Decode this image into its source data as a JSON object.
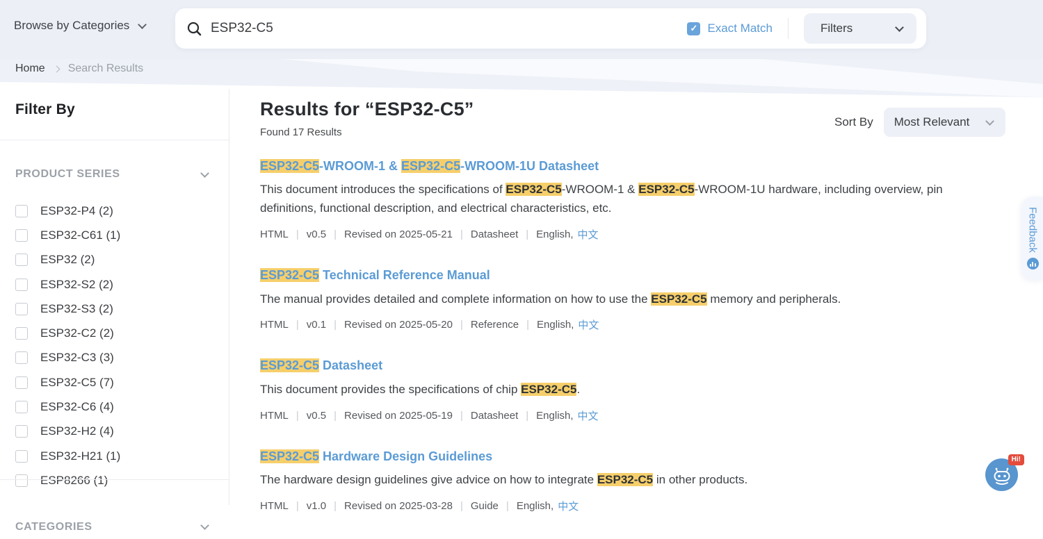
{
  "header": {
    "browse_label": "Browse by Categories",
    "search_value": "ESP32-C5",
    "exact_match_label": "Exact Match",
    "exact_match_checked": true,
    "filters_label": "Filters"
  },
  "breadcrumb": {
    "home": "Home",
    "current": "Search Results"
  },
  "sidebar": {
    "title": "Filter By",
    "product_series": {
      "label": "PRODUCT SERIES",
      "items": [
        "ESP32-P4 (2)",
        "ESP32-C61 (1)",
        "ESP32 (2)",
        "ESP32-S2 (2)",
        "ESP32-S3 (2)",
        "ESP32-C2 (2)",
        "ESP32-C3 (3)",
        "ESP32-C5 (7)",
        "ESP32-C6 (4)",
        "ESP32-H2 (4)",
        "ESP32-H21 (1)",
        "ESP8266 (1)"
      ]
    },
    "categories": {
      "label": "CATEGORIES"
    }
  },
  "results": {
    "title": "Results for “ESP32-C5”",
    "found_text": "Found 17 Results",
    "sort_by_label": "Sort By",
    "sort_value": "Most Relevant",
    "items": [
      {
        "title_parts": [
          {
            "t": "ESP32-C5",
            "hl": true
          },
          {
            "t": "-WROOM-1 & "
          },
          {
            "t": "ESP32-C5",
            "hl": true
          },
          {
            "t": "-WROOM-1U Datasheet"
          }
        ],
        "desc_parts": [
          {
            "t": "This document introduces the specifications of "
          },
          {
            "t": "ESP32-C5",
            "hl": true
          },
          {
            "t": "-WROOM-1 & "
          },
          {
            "t": "ESP32-C5",
            "hl": true
          },
          {
            "t": "-WROOM-1U hardware, including overview, pin definitions, functional description, and electrical characteristics, etc."
          }
        ],
        "meta": [
          "HTML",
          "v0.5",
          "Revised on  2025-05-21",
          "Datasheet"
        ],
        "lang_prefix": "English,",
        "lang_link": "中文"
      },
      {
        "title_parts": [
          {
            "t": "ESP32-C5",
            "hl": true
          },
          {
            "t": " Technical Reference Manual"
          }
        ],
        "desc_parts": [
          {
            "t": "The manual provides detailed and complete information on how to use the "
          },
          {
            "t": "ESP32-C5",
            "hl": true
          },
          {
            "t": " memory and peripherals."
          }
        ],
        "meta": [
          "HTML",
          "v0.1",
          "Revised on  2025-05-20",
          "Reference"
        ],
        "lang_prefix": "English,",
        "lang_link": "中文"
      },
      {
        "title_parts": [
          {
            "t": "ESP32-C5",
            "hl": true
          },
          {
            "t": " Datasheet"
          }
        ],
        "desc_parts": [
          {
            "t": "This document provides the specifications of chip "
          },
          {
            "t": "ESP32-C5",
            "hl": true
          },
          {
            "t": "."
          }
        ],
        "meta": [
          "HTML",
          "v0.5",
          "Revised on  2025-05-19",
          "Datasheet"
        ],
        "lang_prefix": "English,",
        "lang_link": "中文"
      },
      {
        "title_parts": [
          {
            "t": "ESP32-C5",
            "hl": true
          },
          {
            "t": " Hardware Design Guidelines"
          }
        ],
        "desc_parts": [
          {
            "t": "The hardware design guidelines give advice on how to integrate "
          },
          {
            "t": "ESP32-C5",
            "hl": true
          },
          {
            "t": " in other products."
          }
        ],
        "meta": [
          "HTML",
          "v1.0",
          "Revised on  2025-03-28",
          "Guide"
        ],
        "lang_prefix": "English,",
        "lang_link": "中文"
      }
    ]
  },
  "feedback": {
    "label": "Feedback"
  },
  "chatbot": {
    "badge": "Hi!"
  },
  "colors": {
    "accent_blue": "#5B9BD5",
    "highlight_yellow": "#F6CF6B",
    "checkbox_blue": "#6AA4DB",
    "badge_red": "#E44C3C",
    "header_bg": "#ECEFF6"
  }
}
